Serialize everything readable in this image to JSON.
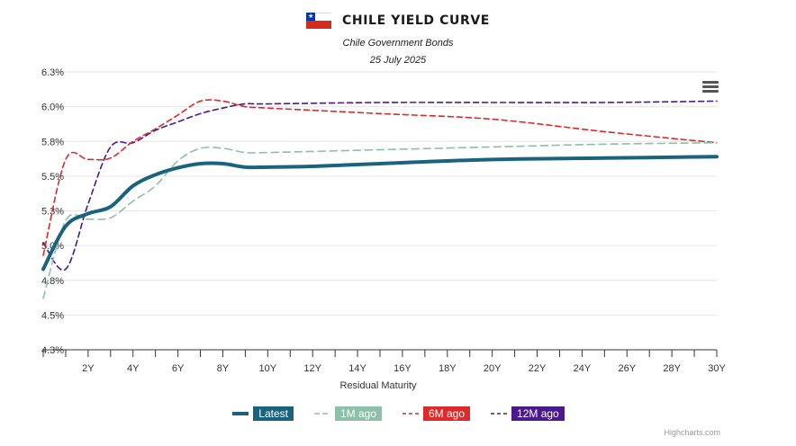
{
  "header": {
    "title": "CHILE YIELD CURVE",
    "subtitle": "Chile Government Bonds",
    "date": "25 July 2025",
    "flag_icon": "chile-flag-icon"
  },
  "menu": {
    "icon": "hamburger-menu-icon"
  },
  "credits": "Highcharts.com",
  "chart_data": {
    "type": "line",
    "xlabel": "Residual Maturity",
    "ylabel": "",
    "xlim": [
      0,
      30
    ],
    "ylim": [
      4.25,
      6.25
    ],
    "x_ticks": [
      2,
      4,
      6,
      8,
      10,
      12,
      14,
      16,
      18,
      20,
      22,
      24,
      26,
      28,
      30
    ],
    "x_tick_labels": [
      "2Y",
      "4Y",
      "6Y",
      "8Y",
      "10Y",
      "12Y",
      "14Y",
      "16Y",
      "18Y",
      "20Y",
      "22Y",
      "24Y",
      "26Y",
      "28Y",
      "30Y"
    ],
    "y_ticks": [
      4.25,
      4.5,
      4.75,
      5.0,
      5.25,
      5.5,
      5.75,
      6.0,
      6.25
    ],
    "y_tick_labels": [
      "4.3%",
      "4.5%",
      "4.8%",
      "5.0%",
      "5.3%",
      "5.5%",
      "5.8%",
      "6.0%",
      "6.3%"
    ],
    "grid": true,
    "legend_position": "bottom",
    "series": [
      {
        "name": "Latest",
        "color": "#1a637f",
        "dash": "solid",
        "x": [
          0,
          1,
          2,
          3,
          4,
          5,
          6,
          7,
          8,
          9,
          10,
          12,
          15,
          20,
          25,
          30
        ],
        "y": [
          4.83,
          5.14,
          5.23,
          5.28,
          5.43,
          5.51,
          5.56,
          5.59,
          5.59,
          5.565,
          5.565,
          5.57,
          5.59,
          5.62,
          5.63,
          5.64
        ]
      },
      {
        "name": "1M ago",
        "color": "#8cc0a8",
        "dash": "longdash",
        "x": [
          0,
          1,
          2,
          3,
          4,
          5,
          6,
          7,
          8,
          9,
          10,
          15,
          20,
          25,
          30
        ],
        "y": [
          4.62,
          5.18,
          5.19,
          5.2,
          5.32,
          5.43,
          5.61,
          5.7,
          5.7,
          5.67,
          5.67,
          5.69,
          5.71,
          5.73,
          5.74
        ]
      },
      {
        "name": "6M ago",
        "color": "#dd2a2a",
        "dash": "dash",
        "x": [
          0,
          1,
          2,
          3,
          4,
          5,
          6,
          7,
          8,
          9,
          10,
          15,
          20,
          25,
          30
        ],
        "y": [
          4.93,
          5.62,
          5.62,
          5.63,
          5.75,
          5.84,
          5.94,
          6.04,
          6.04,
          6.0,
          5.99,
          5.95,
          5.91,
          5.82,
          5.74
        ]
      },
      {
        "name": "12M ago",
        "color": "#4a1a8c",
        "dash": "dash",
        "x": [
          0,
          1,
          2,
          3,
          4,
          5,
          6,
          7,
          8,
          9,
          10,
          15,
          20,
          25,
          30
        ],
        "y": [
          5.02,
          4.83,
          5.3,
          5.71,
          5.74,
          5.83,
          5.89,
          5.95,
          5.99,
          6.02,
          6.02,
          6.03,
          6.03,
          6.03,
          6.04
        ]
      }
    ]
  }
}
